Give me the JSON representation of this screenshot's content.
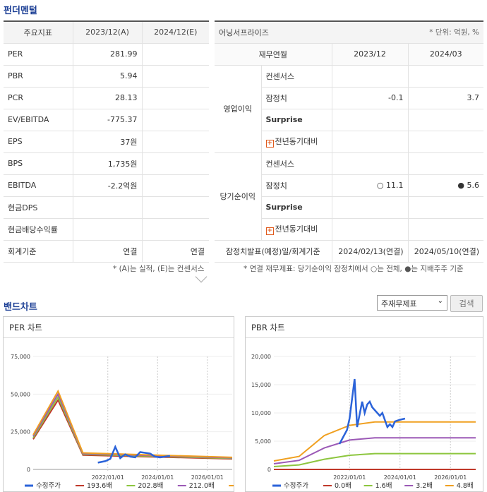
{
  "fund_title": "펀더멘털",
  "fund_table": {
    "headers": [
      "주요지표",
      "2023/12(A)",
      "2024/12(E)"
    ],
    "rows": [
      {
        "label": "PER",
        "a": "281.99",
        "e": ""
      },
      {
        "label": "PBR",
        "a": "5.94",
        "e": ""
      },
      {
        "label": "PCR",
        "a": "28.13",
        "e": ""
      },
      {
        "label": "EV/EBITDA",
        "a": "-775.37",
        "e": ""
      },
      {
        "label": "EPS",
        "a": "37원",
        "e": ""
      },
      {
        "label": "BPS",
        "a": "1,735원",
        "e": ""
      },
      {
        "label": "EBITDA",
        "a": "-2.2억원",
        "e": ""
      },
      {
        "label": "현금DPS",
        "a": "",
        "e": ""
      },
      {
        "label": "현금배당수익률",
        "a": "",
        "e": ""
      },
      {
        "label": "회계기준",
        "a": "연결",
        "e": "연결"
      }
    ],
    "note": "* (A)는 실적, (E)는 컨센서스"
  },
  "earn_table": {
    "title": "어닝서프라이즈",
    "unit": "* 단위: 억원, %",
    "headers": [
      "재무연월",
      "2023/12",
      "2024/03"
    ],
    "op_label": "영업이익",
    "op_rows": [
      {
        "label": "컨센서스",
        "a": "",
        "b": ""
      },
      {
        "label": "잠정치",
        "a": "-0.1",
        "b": "3.7"
      },
      {
        "label": "Surprise",
        "a": "",
        "b": ""
      },
      {
        "label": "전년동기대비",
        "a": "",
        "b": ""
      }
    ],
    "net_label": "당기순이익",
    "net_rows": [
      {
        "label": "컨센서스",
        "a": "",
        "b": ""
      },
      {
        "label": "잠정치",
        "a": "○ 11.1",
        "b": "● 5.6"
      },
      {
        "label": "Surprise",
        "a": "",
        "b": ""
      },
      {
        "label": "전년동기대비",
        "a": "",
        "b": ""
      }
    ],
    "date_label": "잠정치발표(예정)일/회계기준",
    "date_a": "2024/02/13(연결)",
    "date_b": "2024/05/10(연결)",
    "note": "* 연결 재무제표: 당기순이익 잠정치에서 ○는 전체, ●는 지배주주 기준"
  },
  "band_title": "밴드차트",
  "select_value": "주재무제표",
  "search_label": "검색",
  "chart_data": [
    {
      "type": "line",
      "title": "PER 차트",
      "yticks": [
        "75,000",
        "50,000",
        "25,000",
        "0"
      ],
      "xticks": [
        "2022/01/01",
        "2024/01/01",
        "2026/01/01"
      ],
      "ylim": [
        0,
        75000
      ],
      "legend": [
        "수정주가",
        "193.6배",
        "202.8배",
        "212.0배",
        "221.2배"
      ],
      "colors": [
        "#2b63d9",
        "#c0392b",
        "#8dc63f",
        "#9b59b6",
        "#f0a020"
      ],
      "price": [
        [
          2021.6,
          4500
        ],
        [
          2021.9,
          5500
        ],
        [
          2022.1,
          7000
        ],
        [
          2022.3,
          15000
        ],
        [
          2022.5,
          7500
        ],
        [
          2022.7,
          10000
        ],
        [
          2022.9,
          8500
        ],
        [
          2023.1,
          8000
        ],
        [
          2023.3,
          11500
        ],
        [
          2023.5,
          11000
        ],
        [
          2023.7,
          10500
        ],
        [
          2023.9,
          8500
        ],
        [
          2024.1,
          8000
        ],
        [
          2024.3,
          8500
        ],
        [
          2024.5,
          9000
        ]
      ],
      "bands": [
        [
          [
            2019.0,
            20000
          ],
          [
            2020.0,
            46000
          ],
          [
            2021.0,
            9500
          ],
          [
            2027.0,
            7000
          ]
        ],
        [
          [
            2019.0,
            21000
          ],
          [
            2020.0,
            48000
          ],
          [
            2021.0,
            10000
          ],
          [
            2027.0,
            7300
          ]
        ],
        [
          [
            2019.0,
            22000
          ],
          [
            2020.0,
            50000
          ],
          [
            2021.0,
            10500
          ],
          [
            2027.0,
            7700
          ]
        ],
        [
          [
            2019.0,
            23000
          ],
          [
            2020.0,
            52000
          ],
          [
            2021.0,
            11000
          ],
          [
            2027.0,
            8000
          ]
        ]
      ]
    },
    {
      "type": "line",
      "title": "PBR 차트",
      "yticks": [
        "20,000",
        "15,000",
        "10,000",
        "5,000",
        "0"
      ],
      "xticks": [
        "2022/01/01",
        "2024/01/01",
        "2026/01/01"
      ],
      "ylim": [
        0,
        20000
      ],
      "legend": [
        "수정주가",
        "0.0배",
        "1.6배",
        "3.2배",
        "4.8배"
      ],
      "colors": [
        "#2b63d9",
        "#c0392b",
        "#8dc63f",
        "#9b59b6",
        "#f0a020"
      ],
      "price": [
        [
          2021.6,
          4500
        ],
        [
          2021.9,
          7000
        ],
        [
          2022.0,
          9000
        ],
        [
          2022.2,
          16000
        ],
        [
          2022.3,
          7500
        ],
        [
          2022.5,
          12000
        ],
        [
          2022.6,
          10000
        ],
        [
          2022.7,
          11500
        ],
        [
          2022.8,
          12000
        ],
        [
          2022.9,
          11000
        ],
        [
          2023.0,
          10500
        ],
        [
          2023.2,
          9500
        ],
        [
          2023.3,
          10000
        ],
        [
          2023.5,
          7500
        ],
        [
          2023.6,
          8000
        ],
        [
          2023.7,
          7500
        ],
        [
          2023.8,
          8500
        ],
        [
          2024.0,
          8800
        ],
        [
          2024.2,
          9000
        ]
      ],
      "bands": [
        [
          [
            2019.0,
            0
          ],
          [
            2027.0,
            0
          ]
        ],
        [
          [
            2019.0,
            500
          ],
          [
            2020.0,
            800
          ],
          [
            2021.0,
            1800
          ],
          [
            2022.0,
            2500
          ],
          [
            2023.0,
            2800
          ],
          [
            2027.0,
            2800
          ]
        ],
        [
          [
            2019.0,
            1000
          ],
          [
            2020.0,
            1600
          ],
          [
            2021.0,
            3800
          ],
          [
            2022.0,
            5200
          ],
          [
            2023.0,
            5600
          ],
          [
            2027.0,
            5600
          ]
        ],
        [
          [
            2019.0,
            1500
          ],
          [
            2020.0,
            2300
          ],
          [
            2021.0,
            6000
          ],
          [
            2022.0,
            7800
          ],
          [
            2023.0,
            8400
          ],
          [
            2027.0,
            8400
          ]
        ]
      ]
    }
  ]
}
